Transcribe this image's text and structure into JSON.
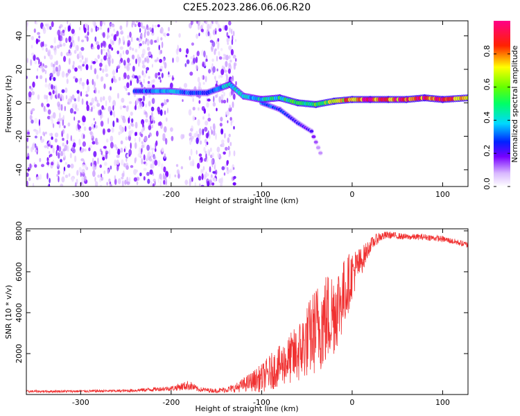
{
  "figure": {
    "title": "C2E5.2023.286.06.06.R20"
  },
  "colorbar": {
    "label": "Normalized spectral amplitude",
    "ticks": [
      0.0,
      0.2,
      0.4,
      0.6,
      0.8
    ],
    "tick_labels": [
      "0.0",
      "0.2",
      "0.4",
      "0.6",
      "0.8"
    ]
  },
  "chart_data": [
    {
      "type": "heatmap",
      "title": "",
      "xlabel": "Height of straight line (km)",
      "ylabel": "Frequency (Hz)",
      "xlim": [
        -360,
        128
      ],
      "ylim": [
        -50,
        49
      ],
      "xticks": [
        -300,
        -200,
        -100,
        0,
        100
      ],
      "xtick_labels": [
        "-300",
        "-200",
        "-100",
        "0",
        "100"
      ],
      "yticks": [
        -40,
        -20,
        0,
        20,
        40
      ],
      "ytick_labels": [
        "-40",
        "-20",
        "0",
        "20",
        "40"
      ],
      "zlim": [
        0,
        1
      ],
      "colormap": "white-purple-blue-cyan-green-yellow-red-magenta",
      "noise_region": {
        "x_range": [
          -360,
          -128
        ],
        "y_range": [
          -50,
          49
        ],
        "typical_amplitude": 0.12
      },
      "signal_ridge": [
        {
          "x": -240,
          "y": 7,
          "z": 0.3
        },
        {
          "x": -220,
          "y": 7,
          "z": 0.35
        },
        {
          "x": -200,
          "y": 7,
          "z": 0.4
        },
        {
          "x": -180,
          "y": 6,
          "z": 0.3
        },
        {
          "x": -160,
          "y": 6,
          "z": 0.3
        },
        {
          "x": -135,
          "y": 11,
          "z": 0.45
        },
        {
          "x": -120,
          "y": 4,
          "z": 0.4
        },
        {
          "x": -100,
          "y": 2,
          "z": 0.45
        },
        {
          "x": -80,
          "y": 3,
          "z": 0.5
        },
        {
          "x": -60,
          "y": 0,
          "z": 0.55
        },
        {
          "x": -40,
          "y": -1,
          "z": 0.6
        },
        {
          "x": -20,
          "y": 1,
          "z": 0.7
        },
        {
          "x": 0,
          "y": 2,
          "z": 0.9
        },
        {
          "x": 20,
          "y": 2,
          "z": 0.95
        },
        {
          "x": 40,
          "y": 2,
          "z": 0.95
        },
        {
          "x": 60,
          "y": 2,
          "z": 0.9
        },
        {
          "x": 80,
          "y": 3,
          "z": 0.95
        },
        {
          "x": 100,
          "y": 2,
          "z": 0.9
        },
        {
          "x": 128,
          "y": 3,
          "z": 0.8
        }
      ],
      "secondary_branch": [
        {
          "x": -100,
          "y": 0,
          "z": 0.35
        },
        {
          "x": -80,
          "y": -4,
          "z": 0.3
        },
        {
          "x": -60,
          "y": -12,
          "z": 0.25
        },
        {
          "x": -45,
          "y": -17,
          "z": 0.2
        },
        {
          "x": -35,
          "y": -30,
          "z": 0.1
        }
      ]
    },
    {
      "type": "line",
      "title": "",
      "xlabel": "Height of straight line (km)",
      "ylabel": "SNR (10 * v/v)",
      "xlim": [
        -360,
        128
      ],
      "ylim": [
        0,
        8100
      ],
      "xticks": [
        -300,
        -200,
        -100,
        0,
        100
      ],
      "xtick_labels": [
        "-300",
        "-200",
        "-100",
        "0",
        "100"
      ],
      "yticks": [
        2000,
        4000,
        6000,
        8000
      ],
      "ytick_labels": [
        "2000",
        "4000",
        "6000",
        "8000"
      ],
      "color": "#f03030",
      "x": [
        -360,
        -300,
        -250,
        -200,
        -180,
        -170,
        -150,
        -130,
        -110,
        -100,
        -90,
        -80,
        -70,
        -60,
        -50,
        -40,
        -30,
        -20,
        -10,
        0,
        10,
        20,
        30,
        40,
        60,
        80,
        100,
        120,
        128
      ],
      "y": [
        150,
        160,
        180,
        300,
        450,
        250,
        180,
        300,
        650,
        800,
        1100,
        1400,
        1700,
        2000,
        2600,
        3200,
        3600,
        4100,
        4800,
        5900,
        6500,
        7300,
        7700,
        7800,
        7700,
        7700,
        7600,
        7400,
        7300
      ],
      "noise_amplitude": [
        60,
        60,
        70,
        120,
        250,
        120,
        100,
        200,
        500,
        700,
        900,
        1000,
        1200,
        1500,
        1800,
        2200,
        2400,
        2200,
        1800,
        1200,
        700,
        350,
        250,
        180,
        150,
        150,
        150,
        150,
        150
      ]
    }
  ]
}
